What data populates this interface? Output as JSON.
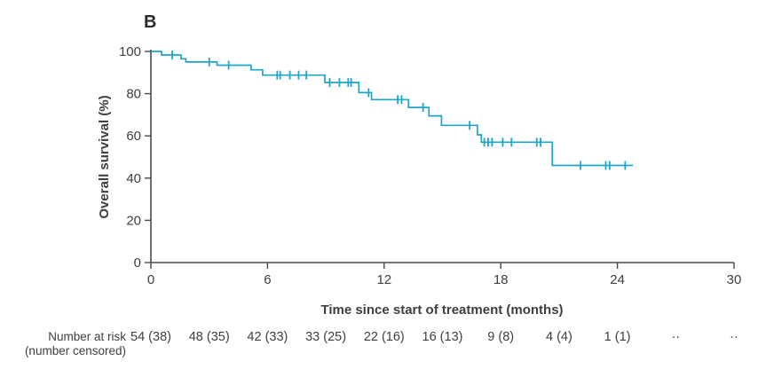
{
  "panel_label": "B",
  "chart_data": {
    "type": "line",
    "subtype": "kaplan-meier-step-curve",
    "title": "B",
    "xlabel": "Time since start of treatment (months)",
    "ylabel": "Overall survival (%)",
    "xlim": [
      0,
      30
    ],
    "ylim": [
      0,
      100
    ],
    "x_ticks": [
      0,
      6,
      12,
      18,
      24,
      30
    ],
    "y_ticks": [
      0,
      20,
      40,
      60,
      80,
      100
    ],
    "grid": false,
    "legend": "none",
    "line_color": "#1fa5c9",
    "axis_color": "#47494e",
    "series": [
      {
        "name": "Overall survival",
        "steps": [
          [
            0,
            100
          ],
          [
            0.55,
            98.3
          ],
          [
            1.55,
            96.5
          ],
          [
            1.8,
            95.0
          ],
          [
            3.4,
            93.5
          ],
          [
            5.15,
            91.3
          ],
          [
            5.75,
            88.8
          ],
          [
            8.95,
            85.3
          ],
          [
            10.7,
            80.5
          ],
          [
            11.35,
            77.2
          ],
          [
            13.25,
            73.5
          ],
          [
            14.3,
            69.5
          ],
          [
            14.95,
            65.0
          ],
          [
            16.8,
            60.5
          ],
          [
            17.0,
            57.0
          ],
          [
            20.65,
            46.0
          ]
        ],
        "end_time": 24.8,
        "censor_marks": [
          [
            1.1,
            98.3
          ],
          [
            3.0,
            95.0
          ],
          [
            4.0,
            93.5
          ],
          [
            6.5,
            88.8
          ],
          [
            6.65,
            88.8
          ],
          [
            7.15,
            88.8
          ],
          [
            7.6,
            88.8
          ],
          [
            8.0,
            88.8
          ],
          [
            9.2,
            85.3
          ],
          [
            9.7,
            85.3
          ],
          [
            10.15,
            85.3
          ],
          [
            10.3,
            85.3
          ],
          [
            11.2,
            80.5
          ],
          [
            12.7,
            77.2
          ],
          [
            12.9,
            77.2
          ],
          [
            14.0,
            73.5
          ],
          [
            16.4,
            65.0
          ],
          [
            17.15,
            57.0
          ],
          [
            17.35,
            57.0
          ],
          [
            17.55,
            57.0
          ],
          [
            18.1,
            57.0
          ],
          [
            18.55,
            57.0
          ],
          [
            19.85,
            57.0
          ],
          [
            20.05,
            57.0
          ],
          [
            22.1,
            46.0
          ],
          [
            23.4,
            46.0
          ],
          [
            23.6,
            46.0
          ],
          [
            24.4,
            46.0
          ]
        ]
      }
    ]
  },
  "risk_table": {
    "label_line1": "Number at risk",
    "label_line2": "(number censored)",
    "times": [
      0,
      3,
      6,
      9,
      12,
      15,
      18,
      21,
      24,
      27,
      30
    ],
    "values": [
      "54 (38)",
      "48 (35)",
      "42 (33)",
      "33 (25)",
      "22 (16)",
      "16 (13)",
      "9 (8)",
      "4 (4)",
      "1 (1)",
      "··",
      "··"
    ]
  }
}
